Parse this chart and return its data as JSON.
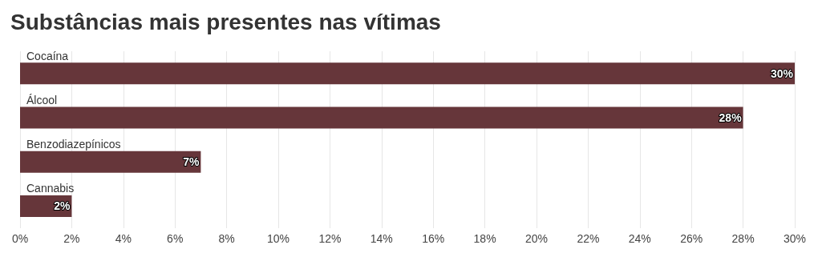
{
  "chart_data": {
    "type": "bar",
    "orientation": "horizontal",
    "title": "Substâncias mais presentes nas vítimas",
    "categories": [
      "Cocaína",
      "Álcool",
      "Benzodiazepínicos",
      "Cannabis"
    ],
    "values": [
      30,
      28,
      7,
      2
    ],
    "value_labels": [
      "30%",
      "28%",
      "7%",
      "2%"
    ],
    "color": "#66363a",
    "xlim": [
      0,
      30
    ],
    "xticks": [
      {
        "value": 0,
        "label": "0%"
      },
      {
        "value": 2,
        "label": "2%"
      },
      {
        "value": 4,
        "label": "4%"
      },
      {
        "value": 6,
        "label": "6%"
      },
      {
        "value": 8,
        "label": "8%"
      },
      {
        "value": 10,
        "label": "10%"
      },
      {
        "value": 12,
        "label": "12%"
      },
      {
        "value": 14,
        "label": "14%"
      },
      {
        "value": 16,
        "label": "16%"
      },
      {
        "value": 18,
        "label": "18%"
      },
      {
        "value": 20,
        "label": "20%"
      },
      {
        "value": 22,
        "label": "22%"
      },
      {
        "value": 24,
        "label": "24%"
      },
      {
        "value": 26,
        "label": "26%"
      },
      {
        "value": 28,
        "label": "28%"
      },
      {
        "value": 30,
        "label": "30%"
      }
    ],
    "grid": "x"
  }
}
